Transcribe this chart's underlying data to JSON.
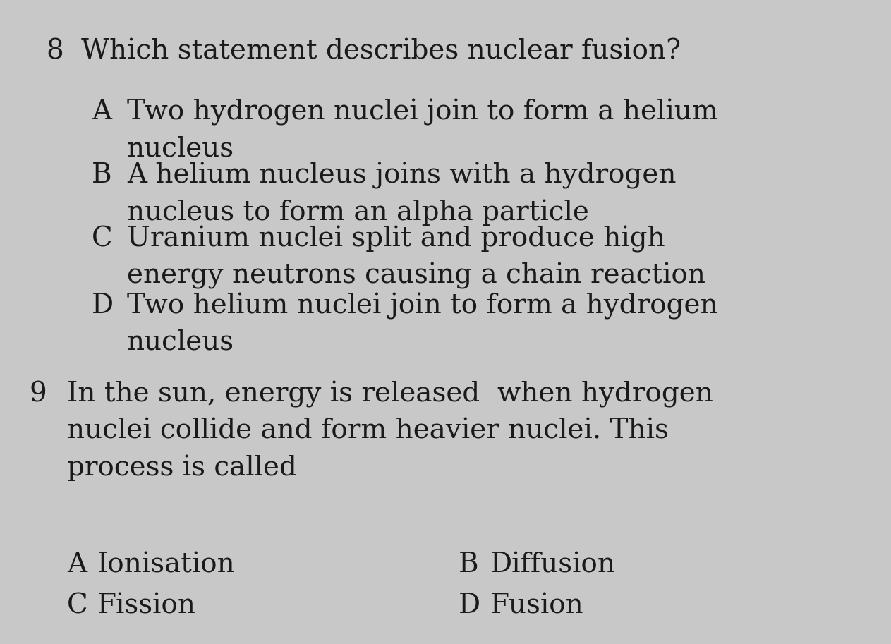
{
  "bg_color": "#c8c8c8",
  "text_color": "#1a1a1a",
  "q8_number": "8",
  "q8_question": "Which statement describes nuclear fusion?",
  "q8_options": [
    {
      "label": "A",
      "line1": "Two hydrogen nuclei join to form a helium",
      "line2": "nucleus"
    },
    {
      "label": "B",
      "line1": "A helium nucleus joins with a hydrogen",
      "line2": "nucleus to form an alpha particle"
    },
    {
      "label": "C",
      "line1": "Uranium nuclei split and produce high",
      "line2": "energy neutrons causing a chain reaction"
    },
    {
      "label": "D",
      "line1": "Two helium nuclei join to form a hydrogen",
      "line2": "nucleus"
    }
  ],
  "q9_number": "9",
  "q9_line1": "In the sun, energy is released  when hydrogen",
  "q9_line2": "nuclei collide and form heavier nuclei. This",
  "q9_line3": "process is called",
  "q9_options_left": [
    {
      "label": "A",
      "text": "Ionisation"
    },
    {
      "label": "C",
      "text": "Fission"
    }
  ],
  "q9_options_right": [
    {
      "label": "B",
      "text": "Diffusion"
    },
    {
      "label": "D",
      "text": "Fusion"
    }
  ],
  "font_size_question": 28,
  "font_size_option": 28,
  "font_size_number": 28
}
